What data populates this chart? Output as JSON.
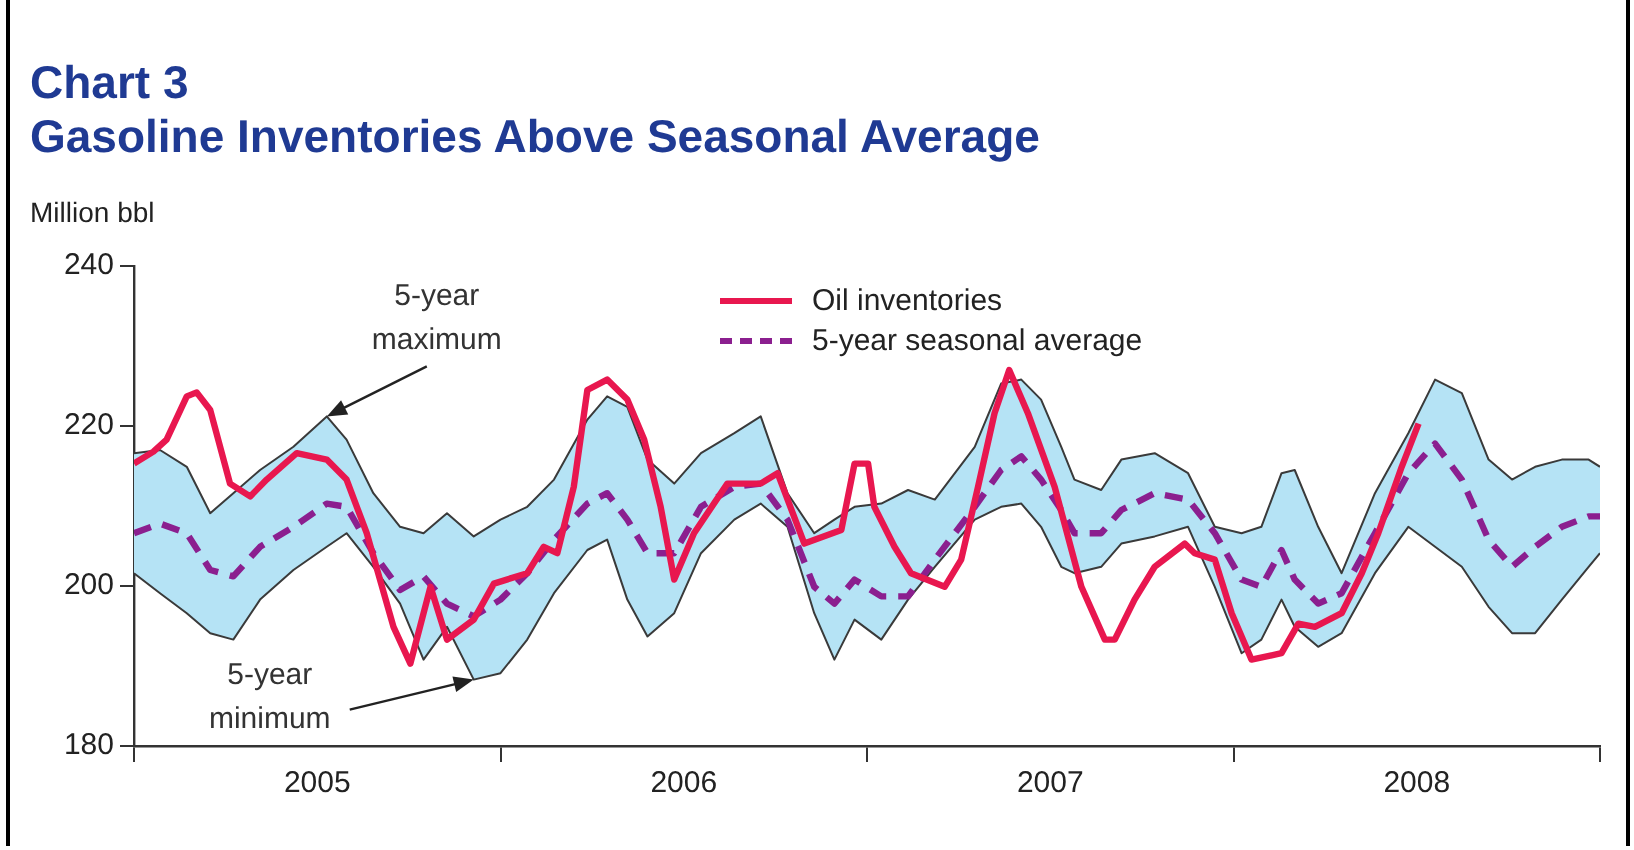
{
  "chart_data": {
    "type": "line",
    "title": "Chart 3",
    "subtitle": "Gasoline Inventories Above Seasonal Average",
    "ylabel": "Million bbl",
    "xlim": [
      2005,
      2009
    ],
    "xticks": [
      {
        "value": 2005,
        "label": null
      },
      {
        "value": 2005.5,
        "label": "2005"
      },
      {
        "value": 2006,
        "label": null
      },
      {
        "value": 2006.5,
        "label": "2006"
      },
      {
        "value": 2007,
        "label": null
      },
      {
        "value": 2007.5,
        "label": "2007"
      },
      {
        "value": 2008,
        "label": null
      },
      {
        "value": 2008.5,
        "label": "2008"
      },
      {
        "value": 2009,
        "label": null
      }
    ],
    "ylim": [
      180,
      240
    ],
    "yticks": [
      180,
      200,
      220,
      240
    ],
    "grid": false,
    "legend": "top",
    "marker": "none",
    "series": [
      {
        "name": "Oil inventories",
        "color": "#e8174f",
        "line_style": "solid",
        "x": [
          2005.0,
          2005.053,
          2005.089,
          2005.144,
          2005.171,
          2005.208,
          2005.262,
          2005.317,
          2005.362,
          2005.444,
          2005.526,
          2005.58,
          2005.635,
          2005.708,
          2005.754,
          2005.809,
          2005.854,
          2005.927,
          2005.982,
          2006.073,
          2006.118,
          2006.155,
          2006.2,
          2006.237,
          2006.291,
          2006.346,
          2006.392,
          2006.437,
          2006.474,
          2006.528,
          2006.619,
          2006.71,
          2006.756,
          2006.829,
          2006.93,
          2006.966,
          2007.003,
          2007.02,
          2007.075,
          2007.12,
          2007.212,
          2007.257,
          2007.303,
          2007.348,
          2007.388,
          2007.439,
          2007.512,
          2007.585,
          2007.649,
          2007.676,
          2007.73,
          2007.785,
          2007.867,
          2007.894,
          2007.949,
          2007.995,
          2008.049,
          2008.131,
          2008.177,
          2008.222,
          2008.295,
          2008.35,
          2008.395,
          2008.459,
          2008.505
        ],
        "values": [
          215.3,
          216.8,
          218.3,
          223.7,
          224.2,
          222,
          212.8,
          211.2,
          213.3,
          216.6,
          215.8,
          213.3,
          206.6,
          194.9,
          190.3,
          199.9,
          193.3,
          195.8,
          200.3,
          201.6,
          204.9,
          204.1,
          212.4,
          224.5,
          225.8,
          223.3,
          218.3,
          209.9,
          200.8,
          206.6,
          212.8,
          212.8,
          214.1,
          205.3,
          207,
          215.3,
          215.3,
          209.9,
          204.9,
          201.6,
          199.9,
          203.3,
          212.4,
          221.6,
          227,
          221.6,
          212.4,
          199.9,
          193.3,
          193.3,
          198.3,
          202.4,
          205.3,
          204.1,
          203.3,
          196.6,
          190.8,
          191.6,
          195.3,
          194.9,
          196.6,
          201.6,
          206.6,
          214.9,
          220.3
        ]
      },
      {
        "name": "5-year seasonal average",
        "color": "#8b1f8f",
        "line_style": "dashed",
        "x": [
          2005.0,
          2005.071,
          2005.144,
          2005.208,
          2005.271,
          2005.344,
          2005.435,
          2005.526,
          2005.58,
          2005.653,
          2005.726,
          2005.79,
          2005.854,
          2005.927,
          2006.0,
          2006.073,
          2006.146,
          2006.237,
          2006.291,
          2006.346,
          2006.401,
          2006.474,
          2006.547,
          2006.638,
          2006.71,
          2006.783,
          2006.856,
          2006.911,
          2006.966,
          2007.039,
          2007.112,
          2007.185,
          2007.294,
          2007.366,
          2007.421,
          2007.475,
          2007.53,
          2007.566,
          2007.639,
          2007.694,
          2007.785,
          2007.876,
          2007.949,
          2008.022,
          2008.076,
          2008.131,
          2008.167,
          2008.231,
          2008.295,
          2008.386,
          2008.477,
          2008.55,
          2008.623,
          2008.696,
          2008.76,
          2008.823,
          2008.896,
          2008.969,
          2009.0
        ],
        "values": [
          206.6,
          207.8,
          206.6,
          202,
          201.2,
          204.9,
          207.4,
          210.3,
          209.9,
          204.1,
          199.5,
          201.2,
          197.8,
          196.2,
          198.3,
          201.6,
          205.8,
          210.3,
          211.6,
          208.3,
          204.1,
          204.1,
          209.9,
          212.4,
          212.8,
          208.3,
          199.9,
          197.8,
          200.8,
          198.7,
          198.7,
          203.3,
          209.9,
          214.5,
          216.2,
          213.3,
          209.5,
          206.6,
          206.6,
          209.5,
          211.6,
          210.8,
          206.6,
          200.8,
          199.9,
          204.5,
          200.8,
          197.8,
          199.1,
          206.6,
          214.1,
          217.8,
          213.3,
          205.8,
          202.4,
          204.9,
          207.4,
          208.7,
          208.7
        ],
        "upper": [
          216.6,
          217,
          214.9,
          209.1,
          211.6,
          214.5,
          217.4,
          221.2,
          218.3,
          211.6,
          207.4,
          206.6,
          209.1,
          206.2,
          208.3,
          209.9,
          213.3,
          220.8,
          223.7,
          222.4,
          215.8,
          212.8,
          216.6,
          219.1,
          221.2,
          211.6,
          206.6,
          208.3,
          209.9,
          210.3,
          212,
          210.8,
          217.4,
          225.3,
          225.8,
          223.3,
          217.4,
          213.3,
          212,
          215.8,
          216.6,
          214.1,
          207.4,
          206.6,
          207.4,
          214.1,
          214.5,
          207.4,
          201.6,
          211.6,
          219.1,
          225.8,
          224.1,
          215.8,
          213.3,
          214.9,
          215.8,
          215.8,
          214.9
        ],
        "lower": [
          201.6,
          199.1,
          196.6,
          194.1,
          193.3,
          198.3,
          202,
          204.9,
          206.6,
          202.4,
          197.8,
          190.8,
          194.9,
          188.3,
          189.1,
          193.3,
          199.1,
          204.5,
          205.8,
          198.3,
          193.7,
          196.6,
          204.1,
          208.3,
          210.3,
          207.4,
          196.6,
          190.8,
          195.8,
          193.3,
          198.3,
          202.4,
          208.3,
          209.9,
          210.3,
          207.4,
          202.4,
          201.6,
          202.4,
          205.3,
          206.2,
          207.4,
          199.9,
          191.6,
          193.3,
          198.3,
          194.9,
          192.4,
          194.1,
          201.6,
          207.4,
          204.9,
          202.4,
          197.4,
          194.1,
          194.1,
          198.3,
          202.4,
          204.1
        ]
      },
      {
        "color": "#3a3a3a",
        "line_style": "solid",
        "x": [
          2005.0,
          2005.071,
          2005.144,
          2005.208,
          2005.271,
          2005.344,
          2005.435,
          2005.526,
          2005.58,
          2005.653,
          2005.726,
          2005.79,
          2005.854,
          2005.927,
          2006.0,
          2006.073,
          2006.146,
          2006.237,
          2006.291,
          2006.346,
          2006.401,
          2006.474,
          2006.547,
          2006.638,
          2006.71,
          2006.783,
          2006.856,
          2006.911,
          2006.966,
          2007.039,
          2007.112,
          2007.185,
          2007.294,
          2007.366,
          2007.421,
          2007.475,
          2007.53,
          2007.566,
          2007.639,
          2007.694,
          2007.785,
          2007.876,
          2007.949,
          2008.022,
          2008.076,
          2008.131,
          2008.167,
          2008.231,
          2008.295,
          2008.386,
          2008.477,
          2008.55,
          2008.623,
          2008.696,
          2008.76,
          2008.823,
          2008.896,
          2008.969,
          2009.0
        ],
        "values": [
          216.6,
          217,
          214.9,
          209.1,
          211.6,
          214.5,
          217.4,
          221.2,
          218.3,
          211.6,
          207.4,
          206.6,
          209.1,
          206.2,
          208.3,
          209.9,
          213.3,
          220.8,
          223.7,
          222.4,
          215.8,
          212.8,
          216.6,
          219.1,
          221.2,
          211.6,
          206.6,
          208.3,
          209.9,
          210.3,
          212,
          210.8,
          217.4,
          225.3,
          225.8,
          223.3,
          217.4,
          213.3,
          212,
          215.8,
          216.6,
          214.1,
          207.4,
          206.6,
          207.4,
          214.1,
          214.5,
          207.4,
          201.6,
          211.6,
          219.1,
          225.8,
          224.1,
          215.8,
          213.3,
          214.9,
          215.8,
          215.8,
          214.9
        ]
      },
      {
        "color": "#3a3a3a",
        "line_style": "solid",
        "x": [
          2005.0,
          2005.071,
          2005.144,
          2005.208,
          2005.271,
          2005.344,
          2005.435,
          2005.526,
          2005.58,
          2005.653,
          2005.726,
          2005.79,
          2005.854,
          2005.927,
          2006.0,
          2006.073,
          2006.146,
          2006.237,
          2006.291,
          2006.346,
          2006.401,
          2006.474,
          2006.547,
          2006.638,
          2006.71,
          2006.783,
          2006.856,
          2006.911,
          2006.966,
          2007.039,
          2007.112,
          2007.185,
          2007.294,
          2007.366,
          2007.421,
          2007.475,
          2007.53,
          2007.566,
          2007.639,
          2007.694,
          2007.785,
          2007.876,
          2007.949,
          2008.022,
          2008.076,
          2008.131,
          2008.167,
          2008.231,
          2008.295,
          2008.386,
          2008.477,
          2008.55,
          2008.623,
          2008.696,
          2008.76,
          2008.823,
          2008.896,
          2008.969,
          2009.0
        ],
        "values": [
          201.6,
          199.1,
          196.6,
          194.1,
          193.3,
          198.3,
          202,
          204.9,
          206.6,
          202.4,
          197.8,
          190.8,
          194.9,
          188.3,
          189.1,
          193.3,
          199.1,
          204.5,
          205.8,
          198.3,
          193.7,
          196.6,
          204.1,
          208.3,
          210.3,
          207.4,
          196.6,
          190.8,
          195.8,
          193.3,
          198.3,
          202.4,
          208.3,
          209.9,
          210.3,
          207.4,
          202.4,
          201.6,
          202.4,
          205.3,
          206.2,
          207.4,
          199.9,
          191.6,
          193.3,
          198.3,
          194.9,
          192.4,
          194.1,
          201.6,
          207.4,
          204.9,
          202.4,
          197.4,
          194.1,
          194.1,
          198.3,
          202.4,
          204.1
        ]
      }
    ],
    "annotations": [
      {
        "text": "5-year maximum",
        "x": 2005.526,
        "y": 221.2
      },
      {
        "text": "5-year minimum",
        "x": 2005.927,
        "y": 188.3
      }
    ]
  }
}
